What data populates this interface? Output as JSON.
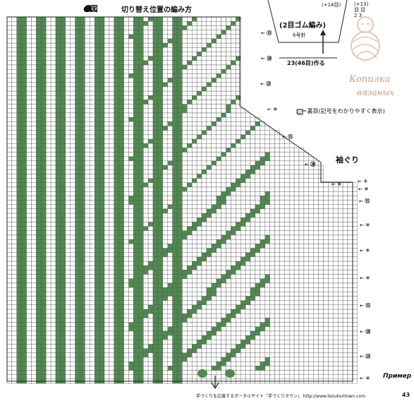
{
  "diagram": {
    "title": "●図",
    "subtitle": "切り替え位置の編み方",
    "legend": "□＝裏目(記号をわかりやすく表示)",
    "sleeve_label": "袖ぐり",
    "rib_label": "(2目ゴム編み)",
    "needle_label": "6号針",
    "increase_label": "(+14目)",
    "cast_on_label": "23(46目)作る",
    "corner_text": "(+13)\n目 目\n2 3",
    "row_labels": [
      "①",
      "⑩",
      "⑮",
      "⑩",
      "⑤",
      "⑩",
      "⑮",
      "⑳",
      "㉕",
      "⑩",
      "⑮",
      "⑳",
      "㉕",
      "⑩",
      "⑮",
      "⑳",
      "⑤"
    ],
    "primer": "Пример",
    "footer": "手づくりを応援するポータルサイト「手づくりタウン」 http://www.tezukuritown.com",
    "page_number": "43"
  },
  "watermark": {
    "line1": "Копилка",
    "line2": "вязаных"
  },
  "colors": {
    "grid": "#555555",
    "green": "#4f8a4f",
    "paper": "#ffffff",
    "watermark": "#c89a7a"
  }
}
